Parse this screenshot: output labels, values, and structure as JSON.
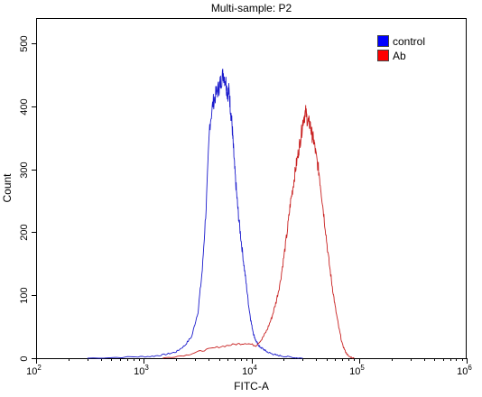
{
  "chart_data": {
    "type": "line",
    "title": "Multi-sample: P2",
    "xlabel": "FITC-A",
    "ylabel": "Count",
    "x_scale": "log",
    "xlim": [
      100,
      1000000
    ],
    "ylim": [
      0,
      540
    ],
    "x_ticks": [
      {
        "value": 100,
        "base": "10",
        "exp": "2"
      },
      {
        "value": 1000,
        "base": "10",
        "exp": "3"
      },
      {
        "value": 10000,
        "base": "10",
        "exp": "4"
      },
      {
        "value": 100000,
        "base": "10",
        "exp": "5"
      },
      {
        "value": 1000000,
        "base": "10",
        "exp": "6"
      }
    ],
    "y_ticks": [
      0,
      100,
      200,
      300,
      400,
      500
    ],
    "legend_position": "top-right",
    "grid": false,
    "series": [
      {
        "name": "control",
        "color": "#1a1acc",
        "legend_color": "#0000ff",
        "x": [
          300,
          800,
          1200,
          1600,
          2000,
          2400,
          2800,
          3200,
          3500,
          3800,
          4100,
          4400,
          4700,
          5000,
          5200,
          5500,
          5800,
          6000,
          6200,
          6400,
          6600,
          6800,
          7000,
          7300,
          7600,
          8000,
          8500,
          9000,
          9500,
          10000,
          10500,
          11000,
          11500,
          12000,
          13000,
          14000,
          15500,
          17000,
          20000,
          25000,
          30000
        ],
        "y": [
          0,
          2,
          3,
          6,
          10,
          20,
          35,
          75,
          140,
          240,
          370,
          405,
          420,
          430,
          440,
          452,
          438,
          420,
          425,
          395,
          372,
          335,
          300,
          260,
          225,
          190,
          150,
          115,
          80,
          55,
          38,
          28,
          22,
          18,
          14,
          10,
          7,
          5,
          3,
          1,
          0
        ]
      },
      {
        "name": "Ab",
        "color": "#c82020",
        "legend_color": "#ff0000",
        "x": [
          1500,
          2500,
          3500,
          5000,
          7000,
          9000,
          11000,
          12500,
          14000,
          15500,
          17000,
          18500,
          20000,
          21500,
          23000,
          24500,
          26000,
          27500,
          29000,
          30500,
          32000,
          33500,
          35000,
          36500,
          38000,
          40000,
          42500,
          45000,
          48000,
          52000,
          56000,
          60000,
          65000,
          70000,
          75000,
          80000,
          90000
        ],
        "y": [
          0,
          5,
          12,
          18,
          22,
          24,
          20,
          30,
          45,
          65,
          90,
          120,
          160,
          200,
          245,
          275,
          305,
          330,
          355,
          382,
          390,
          375,
          372,
          355,
          345,
          320,
          295,
          258,
          215,
          160,
          118,
          82,
          48,
          22,
          10,
          3,
          0
        ]
      }
    ]
  }
}
